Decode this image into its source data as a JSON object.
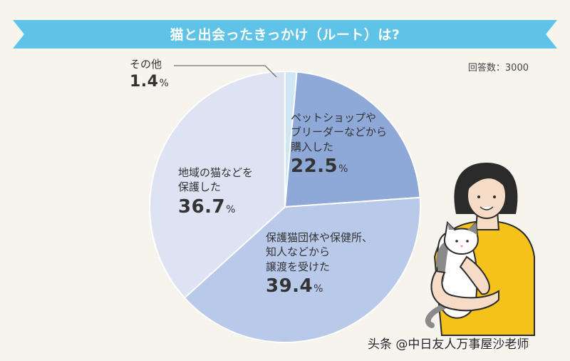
{
  "title": "猫と出会ったきっかけ（ルート）は?",
  "respondents": "回答数：3000",
  "colors": {
    "ribbon": "#5fc3e8",
    "background": "#f7f4ee",
    "slices": [
      "#cfe6f4",
      "#8ea9d8",
      "#b8c9e9",
      "#dde3f3"
    ],
    "person_top": "#f4c21a",
    "hair": "#2b2b2b",
    "skin": "#f6dcc6"
  },
  "chart_data": {
    "type": "pie",
    "slices": [
      {
        "label": "その他",
        "value": 1.4,
        "display": "1.4"
      },
      {
        "label": "ペットショップや\nブリーダーなどから\n購入した",
        "value": 22.5,
        "display": "22.5"
      },
      {
        "label": "保護猫団体や保健所、\n知人などから\n譲渡を受けた",
        "value": 39.4,
        "display": "39.4"
      },
      {
        "label": "地域の猫などを\n保護した",
        "value": 36.7,
        "display": "36.7"
      }
    ],
    "unit": "%"
  },
  "watermark": "头条 @中日友人万事屋沙老师"
}
